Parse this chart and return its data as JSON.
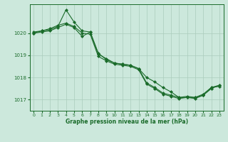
{
  "background_color": "#cce8dc",
  "grid_color": "#aaccbb",
  "line_color": "#1a6b2a",
  "marker_color": "#1a6b2a",
  "xlabel": "Graphe pression niveau de la mer (hPa)",
  "xlim": [
    -0.5,
    23.5
  ],
  "ylim": [
    1016.5,
    1021.3
  ],
  "yticks": [
    1017,
    1018,
    1019,
    1020
  ],
  "xticks": [
    0,
    1,
    2,
    3,
    4,
    5,
    6,
    7,
    8,
    9,
    10,
    11,
    12,
    13,
    14,
    15,
    16,
    17,
    18,
    19,
    20,
    21,
    22,
    23
  ],
  "series1": {
    "x": [
      0,
      1,
      2,
      3,
      4,
      5,
      6,
      7,
      8,
      9,
      10,
      11,
      12,
      13,
      14,
      15,
      16,
      17,
      18,
      19,
      20,
      21,
      22,
      23
    ],
    "y": [
      1020.0,
      1020.1,
      1020.15,
      1020.3,
      1021.05,
      1020.5,
      1020.1,
      1020.05,
      1019.05,
      1018.85,
      1018.65,
      1018.6,
      1018.55,
      1018.4,
      1018.0,
      1017.8,
      1017.55,
      1017.35,
      1017.1,
      1017.1,
      1017.1,
      1017.25,
      1017.55,
      1017.6
    ]
  },
  "series2": {
    "x": [
      0,
      1,
      2,
      3,
      4,
      5,
      6,
      7,
      8,
      9,
      10,
      11,
      12,
      13,
      14,
      15,
      16,
      17,
      18,
      19,
      20,
      21,
      22,
      23
    ],
    "y": [
      1020.05,
      1020.1,
      1020.2,
      1020.35,
      1020.45,
      1020.3,
      1020.0,
      1019.95,
      1018.95,
      1018.75,
      1018.6,
      1018.55,
      1018.5,
      1018.35,
      1017.7,
      1017.5,
      1017.25,
      1017.15,
      1017.05,
      1017.1,
      1017.05,
      1017.2,
      1017.5,
      1017.65
    ]
  },
  "series3": {
    "x": [
      0,
      1,
      2,
      3,
      4,
      5,
      6,
      7,
      8,
      9,
      10,
      11,
      12,
      13,
      14,
      15,
      16,
      17,
      18,
      19,
      20,
      21,
      22,
      23
    ],
    "y": [
      1020.0,
      1020.05,
      1020.1,
      1020.25,
      1020.4,
      1020.25,
      1019.85,
      1020.05,
      1019.1,
      1018.8,
      1018.65,
      1018.6,
      1018.55,
      1018.4,
      1017.75,
      1017.55,
      1017.3,
      1017.2,
      1017.1,
      1017.15,
      1017.1,
      1017.2,
      1017.55,
      1017.65
    ]
  }
}
